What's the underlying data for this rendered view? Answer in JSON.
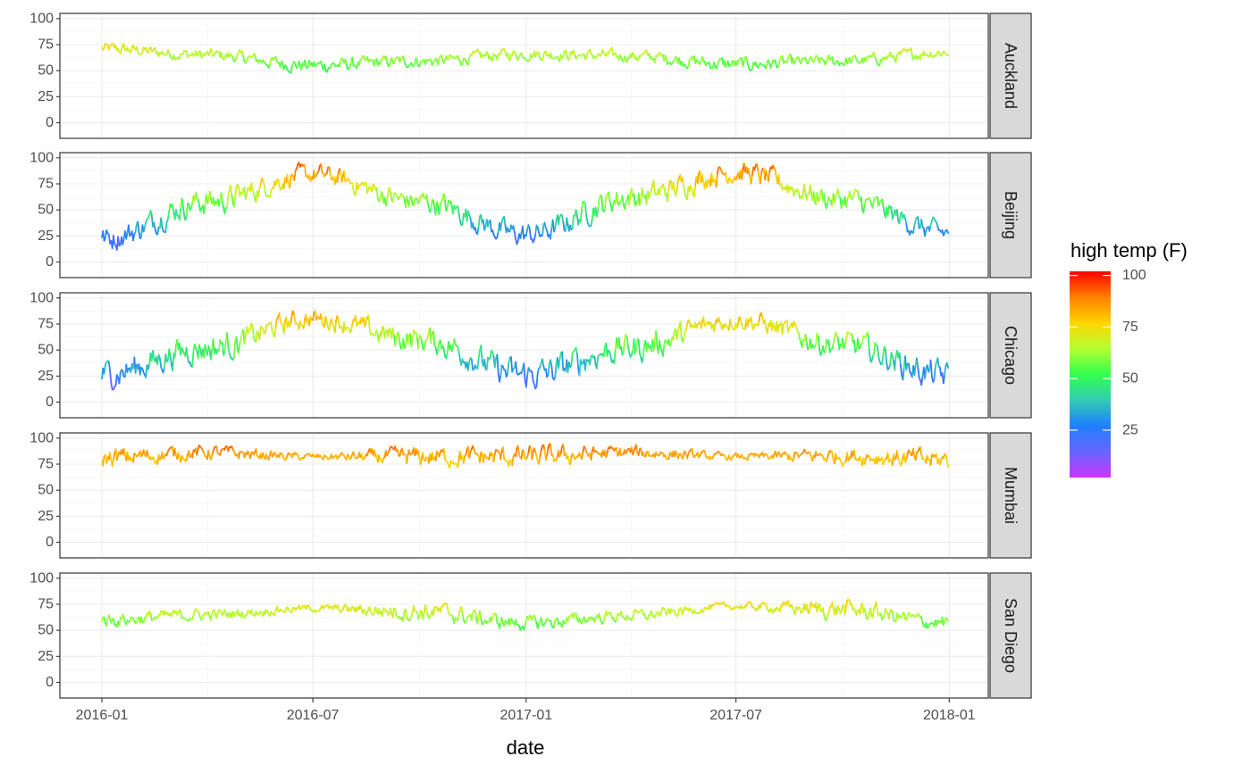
{
  "chart_data": {
    "type": "line",
    "xlabel": "date",
    "ylabel": "",
    "x_range": [
      "2016-01-01",
      "2017-12-31"
    ],
    "x_ticks": [
      "2016-01",
      "2016-07",
      "2017-01",
      "2017-07",
      "2018-01"
    ],
    "ylim": [
      -15,
      105
    ],
    "y_ticks": [
      0,
      25,
      50,
      75,
      100
    ],
    "grid": true,
    "facet_labels": [
      "Auckland",
      "Beijing",
      "Chicago",
      "Mumbai",
      "San Diego"
    ],
    "color_scale": {
      "title": "high temp (F)",
      "range": [
        2,
        102
      ],
      "breaks": [
        25,
        50,
        75,
        100
      ],
      "colors": [
        "#cc33ff",
        "#6666ff",
        "#1f7fff",
        "#33ccb3",
        "#33ff4d",
        "#b3ff33",
        "#ffd500",
        "#ff7f00",
        "#ff0000"
      ],
      "legend_position": "right"
    },
    "series": [
      {
        "name": "Auckland",
        "min_x": [
          "2016-01",
          "2016-04",
          "2016-07",
          "2016-10",
          "2017-01",
          "2017-04",
          "2017-07",
          "2017-10",
          "2018-01"
        ],
        "mean": [
          71,
          65,
          55,
          59,
          66,
          64,
          56,
          59,
          68
        ],
        "spread": [
          5,
          5,
          6,
          5,
          5,
          5,
          6,
          5,
          5
        ]
      },
      {
        "name": "Beijing",
        "min_x": [
          "2016-01",
          "2016-04",
          "2016-07",
          "2016-10",
          "2017-01",
          "2017-04",
          "2017-07",
          "2017-10",
          "2018-01"
        ],
        "mean": [
          22,
          58,
          84,
          58,
          26,
          62,
          86,
          60,
          28
        ],
        "spread": [
          10,
          11,
          8,
          10,
          10,
          11,
          9,
          10,
          9
        ]
      },
      {
        "name": "Chicago",
        "min_x": [
          "2016-01",
          "2016-04",
          "2016-07",
          "2016-10",
          "2017-01",
          "2017-04",
          "2017-07",
          "2017-10",
          "2018-01"
        ],
        "mean": [
          27,
          52,
          80,
          60,
          26,
          52,
          79,
          55,
          25
        ],
        "spread": [
          12,
          12,
          8,
          11,
          13,
          12,
          8,
          11,
          12
        ]
      },
      {
        "name": "Mumbai",
        "min_x": [
          "2016-01",
          "2016-04",
          "2016-07",
          "2016-10",
          "2017-01",
          "2017-04",
          "2017-07",
          "2017-10",
          "2018-01"
        ],
        "mean": [
          81,
          86,
          82,
          82,
          82,
          86,
          82,
          83,
          79
        ],
        "spread": [
          8,
          6,
          3,
          8,
          9,
          6,
          3,
          7,
          9
        ]
      },
      {
        "name": "San Diego",
        "min_x": [
          "2016-01",
          "2016-04",
          "2016-07",
          "2016-10",
          "2017-01",
          "2017-04",
          "2017-07",
          "2017-10",
          "2018-01"
        ],
        "mean": [
          60,
          65,
          71,
          68,
          57,
          64,
          73,
          70,
          57
        ],
        "spread": [
          6,
          5,
          3,
          8,
          6,
          5,
          3,
          8,
          6
        ]
      }
    ]
  }
}
